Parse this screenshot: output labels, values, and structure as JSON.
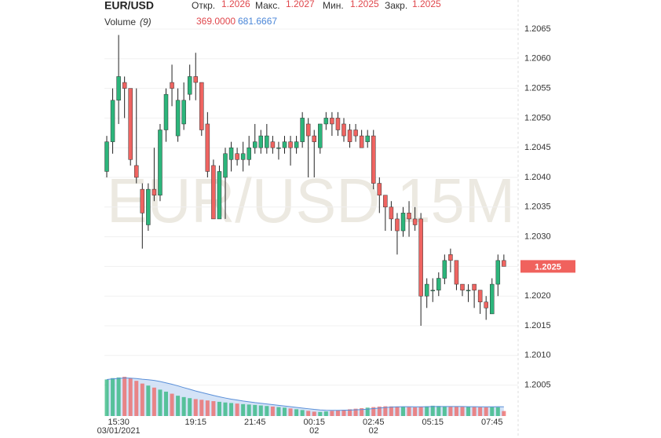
{
  "chart_data": {
    "type": "candlestick",
    "title": "EUR/USD",
    "watermark": "EUR/USD 15M",
    "legend_labels": {
      "open": "Откр.",
      "high": "Макс.",
      "low": "Мин.",
      "close": "Закр."
    },
    "volume_title": "Volume",
    "volume_period": "(9)",
    "volume_readout": {
      "value": 369,
      "label": "369.0000"
    },
    "volume_ma_readout": {
      "value": 681.6667,
      "label": "681.6667"
    },
    "up_color": "#2cb57b",
    "down_color": "#ef6461",
    "categories": [
      null,
      null,
      "15:30",
      null,
      null,
      null,
      null,
      null,
      null,
      null,
      null,
      null,
      null,
      null,
      null,
      "19:15",
      null,
      null,
      null,
      null,
      null,
      null,
      null,
      null,
      null,
      "21:45",
      null,
      null,
      null,
      null,
      null,
      null,
      null,
      null,
      null,
      "00:15",
      null,
      null,
      null,
      null,
      null,
      null,
      null,
      null,
      null,
      "02:45",
      null,
      null,
      null,
      null,
      null,
      null,
      null,
      null,
      null,
      "05:15",
      null,
      null,
      null,
      null,
      null,
      null,
      null,
      null,
      null,
      "07:45",
      null,
      null
    ],
    "category_sublabels": [
      null,
      null,
      "03/01/2021",
      null,
      null,
      null,
      null,
      null,
      null,
      null,
      null,
      null,
      null,
      null,
      null,
      null,
      null,
      null,
      null,
      null,
      null,
      null,
      null,
      null,
      null,
      null,
      null,
      null,
      null,
      null,
      null,
      null,
      null,
      null,
      null,
      "02",
      null,
      null,
      null,
      null,
      null,
      null,
      null,
      null,
      null,
      "02",
      null,
      null,
      null,
      null,
      null,
      null,
      null,
      null,
      null,
      null,
      null,
      null,
      null,
      null,
      null,
      null,
      null,
      null,
      null,
      null,
      null,
      null
    ],
    "open": [
      1.2041,
      1.2046,
      1.2053,
      1.2056,
      1.2055,
      1.2042,
      1.2038,
      1.2032,
      1.2038,
      1.2037,
      1.2048,
      1.2056,
      1.2047,
      1.2049,
      1.2054,
      1.2057,
      1.2056,
      1.2049,
      1.2042,
      1.2033,
      1.204,
      1.2043,
      1.2044,
      1.2043,
      1.2043,
      1.2045,
      1.2045,
      1.2045,
      1.2046,
      1.2045,
      1.2045,
      1.2046,
      1.2045,
      1.2046,
      1.2049,
      1.2047,
      1.2045,
      1.2049,
      1.205,
      1.205,
      1.2049,
      1.2048,
      1.2048,
      1.2047,
      1.2046,
      1.2047,
      1.2039,
      1.2037,
      1.2035,
      1.2033,
      1.2031,
      1.2034,
      1.2033,
      1.2033,
      1.202,
      1.2021,
      1.2021,
      1.2023,
      1.2027,
      1.2026,
      1.2022,
      1.2021,
      1.2022,
      1.2021,
      1.2019,
      1.2017,
      1.2022,
      1.2026
    ],
    "high": [
      1.2047,
      1.2055,
      1.2064,
      1.2057,
      1.2055,
      1.2055,
      1.2039,
      1.2039,
      1.2045,
      1.2049,
      1.2055,
      1.2059,
      1.2055,
      1.2056,
      1.2059,
      1.2061,
      1.2056,
      1.2051,
      1.2043,
      1.2042,
      1.2045,
      1.2046,
      1.2045,
      1.2046,
      1.2047,
      1.2049,
      1.2048,
      1.2049,
      1.2047,
      1.2046,
      1.2047,
      1.2047,
      1.2047,
      1.2051,
      1.205,
      1.2048,
      1.2049,
      1.2051,
      1.2051,
      1.2051,
      1.205,
      1.2049,
      1.2049,
      1.2048,
      1.2048,
      1.2048,
      1.204,
      1.2037,
      1.2036,
      1.2034,
      1.2035,
      1.2036,
      1.2035,
      1.2034,
      1.2023,
      1.2023,
      1.2024,
      1.2027,
      1.2028,
      1.2026,
      1.2022,
      1.2022,
      1.2022,
      1.2021,
      1.202,
      1.2023,
      1.2027,
      1.2027
    ],
    "low": [
      1.204,
      1.2044,
      1.2049,
      1.205,
      1.2042,
      1.2039,
      1.2028,
      1.2031,
      1.2036,
      1.2036,
      1.2046,
      1.2052,
      1.2046,
      1.2048,
      1.2053,
      1.2053,
      1.2047,
      1.204,
      1.2033,
      1.2033,
      1.2033,
      1.2041,
      1.2042,
      1.2041,
      1.2042,
      1.2044,
      1.2044,
      1.2044,
      1.2044,
      1.2043,
      1.2044,
      1.2042,
      1.2044,
      1.2045,
      1.204,
      1.204,
      1.2044,
      1.2048,
      1.2047,
      1.2047,
      1.2046,
      1.2045,
      1.2046,
      1.2045,
      1.2045,
      1.2038,
      1.2034,
      1.2031,
      1.2031,
      1.2027,
      1.203,
      1.203,
      1.2031,
      1.2015,
      1.2018,
      1.2019,
      1.202,
      1.2022,
      1.2024,
      1.2021,
      1.202,
      1.2019,
      1.2018,
      1.2017,
      1.2016,
      1.2017,
      1.202,
      1.2025
    ],
    "close": [
      1.2046,
      1.2053,
      1.2057,
      1.2055,
      1.2043,
      1.204,
      1.2034,
      1.2038,
      1.2037,
      1.2048,
      1.2054,
      1.2055,
      1.2053,
      1.2053,
      1.2057,
      1.2056,
      1.2048,
      1.2041,
      1.2033,
      1.2041,
      1.2044,
      1.2045,
      1.2043,
      1.2044,
      1.2045,
      1.2046,
      1.2047,
      1.2047,
      1.2045,
      1.2045,
      1.2046,
      1.2045,
      1.2046,
      1.205,
      1.2047,
      1.2046,
      1.2049,
      1.205,
      1.2049,
      1.2048,
      1.2047,
      1.2046,
      1.2047,
      1.2045,
      1.2047,
      1.2039,
      1.2037,
      1.2035,
      1.2033,
      1.2031,
      1.2034,
      1.2033,
      1.2032,
      1.202,
      1.2022,
      1.2021,
      1.2023,
      1.2026,
      1.2026,
      1.2022,
      1.2021,
      1.2021,
      1.2021,
      1.2019,
      1.2018,
      1.2022,
      1.2026,
      1.2025
    ],
    "volume": {
      "values": [
        2700,
        2800,
        2850,
        2900,
        2800,
        2600,
        2400,
        2250,
        2100,
        1950,
        1800,
        1650,
        1500,
        1400,
        1320,
        1250,
        1200,
        1150,
        1100,
        1050,
        1000,
        960,
        920,
        880,
        850,
        820,
        780,
        740,
        700,
        660,
        620,
        560,
        500,
        440,
        380,
        320,
        300,
        340,
        380,
        420,
        460,
        500,
        540,
        580,
        620,
        660,
        700,
        720,
        710,
        700,
        680,
        660,
        640,
        680,
        720,
        760,
        740,
        720,
        700,
        690,
        680,
        670,
        660,
        650,
        640,
        660,
        650,
        369
      ],
      "ma": [
        2700,
        2750,
        2780,
        2810,
        2800,
        2770,
        2720,
        2680,
        2630,
        2550,
        2450,
        2350,
        2230,
        2100,
        1980,
        1850,
        1740,
        1630,
        1520,
        1420,
        1330,
        1250,
        1180,
        1110,
        1050,
        990,
        940,
        890,
        840,
        790,
        740,
        690,
        640,
        590,
        540,
        490,
        450,
        430,
        420,
        420,
        430,
        440,
        460,
        480,
        510,
        550,
        590,
        630,
        660,
        680,
        690,
        690,
        680,
        680,
        690,
        700,
        700,
        700,
        700,
        700,
        700,
        690,
        690,
        685,
        680,
        680,
        690,
        681.6667
      ],
      "ma_color": "#5a8fd8"
    },
    "ylim": [
      1.2,
      1.207
    ],
    "yticks": [
      {
        "value": 1.2005,
        "label": "1.2005"
      },
      {
        "value": 1.201,
        "label": "1.2010"
      },
      {
        "value": 1.2015,
        "label": "1.2015"
      },
      {
        "value": 1.202,
        "label": "1.2020"
      },
      {
        "value": 1.2025,
        "label": "1.2025"
      },
      {
        "value": 1.203,
        "label": "1.2030"
      },
      {
        "value": 1.2035,
        "label": "1.2035"
      },
      {
        "value": 1.204,
        "label": "1.2040"
      },
      {
        "value": 1.2045,
        "label": "1.2045"
      },
      {
        "value": 1.205,
        "label": "1.2050"
      },
      {
        "value": 1.2055,
        "label": "1.2055"
      },
      {
        "value": 1.206,
        "label": "1.2060"
      },
      {
        "value": 1.2065,
        "label": "1.2065"
      }
    ],
    "grid": true
  }
}
